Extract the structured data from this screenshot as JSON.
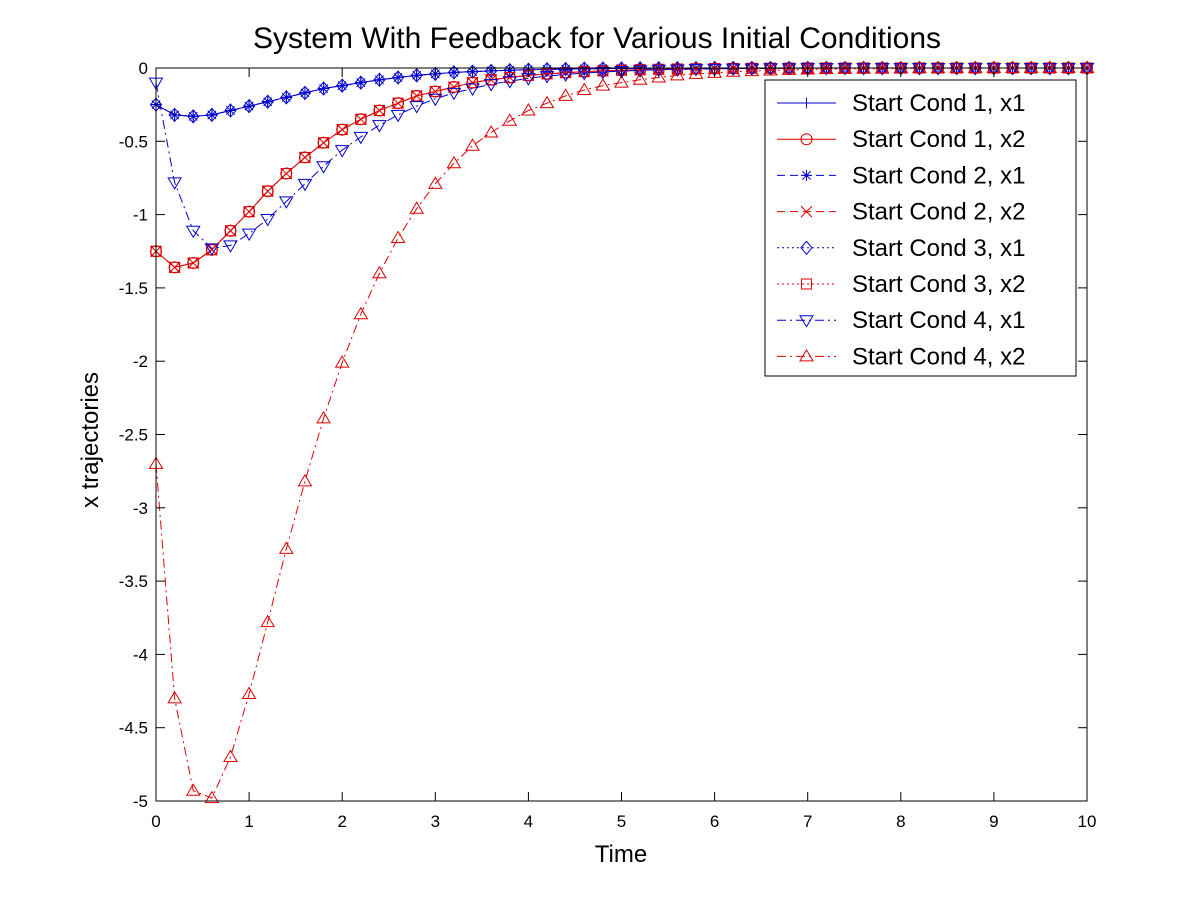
{
  "chart_data": {
    "type": "line",
    "title": "System With Feedback for Various Initial Conditions",
    "xlabel": "Time",
    "ylabel": "x trajectories",
    "xlim": [
      0,
      10
    ],
    "ylim": [
      -5,
      0
    ],
    "x_ticks": [
      "0",
      "1",
      "2",
      "3",
      "4",
      "5",
      "6",
      "7",
      "8",
      "9",
      "10"
    ],
    "y_ticks": [
      "0",
      "-0.5",
      "-1",
      "-1.5",
      "-2",
      "-2.5",
      "-3",
      "-3.5",
      "-4",
      "-4.5",
      "-5"
    ],
    "grid": false,
    "legend_position": "top-right",
    "x": [
      0,
      0.2,
      0.4,
      0.6,
      0.8,
      1,
      1.2,
      1.4,
      1.6,
      1.8,
      2,
      2.2,
      2.4,
      2.6,
      2.8,
      3,
      3.2,
      3.4,
      3.6,
      3.8,
      4,
      4.2,
      4.4,
      4.6,
      4.8,
      5,
      5.2,
      5.4,
      5.6,
      5.8,
      6,
      6.2,
      6.4,
      6.6,
      6.8,
      7,
      7.2,
      7.4,
      7.6,
      7.8,
      8,
      8.2,
      8.4,
      8.6,
      8.8,
      9,
      9.2,
      9.4,
      9.6,
      9.8,
      10
    ],
    "series": [
      {
        "name": "Start Cond 1, x1",
        "color": "#0000cc",
        "marker": "plus",
        "dash": "solid",
        "values": [
          -0.25,
          -0.32,
          -0.33,
          -0.32,
          -0.29,
          -0.26,
          -0.23,
          -0.2,
          -0.17,
          -0.14,
          -0.12,
          -0.1,
          -0.08,
          -0.065,
          -0.05,
          -0.04,
          -0.03,
          -0.025,
          -0.02,
          -0.015,
          -0.012,
          -0.009,
          -0.007,
          -0.005,
          -0.004,
          -0.003,
          -0.002,
          -0.0015,
          -0.001,
          -0.001,
          0,
          0,
          0,
          0,
          0,
          0,
          0,
          0,
          0,
          0,
          0,
          0,
          0,
          0,
          0,
          0,
          0,
          0,
          0,
          0,
          0
        ]
      },
      {
        "name": "Start Cond 1, x2",
        "color": "#dd0000",
        "marker": "circle",
        "dash": "solid",
        "values": [
          -1.25,
          -1.36,
          -1.33,
          -1.24,
          -1.11,
          -0.98,
          -0.84,
          -0.72,
          -0.61,
          -0.51,
          -0.42,
          -0.35,
          -0.29,
          -0.24,
          -0.19,
          -0.16,
          -0.13,
          -0.1,
          -0.08,
          -0.065,
          -0.05,
          -0.04,
          -0.032,
          -0.025,
          -0.02,
          -0.015,
          -0.012,
          -0.009,
          -0.007,
          -0.005,
          -0.004,
          -0.003,
          -0.002,
          -0.0015,
          -0.001,
          0,
          0,
          0,
          0,
          0,
          0,
          0,
          0,
          0,
          0,
          0,
          0,
          0,
          0,
          0,
          0
        ]
      },
      {
        "name": "Start Cond 2, x1",
        "color": "#0000cc",
        "marker": "star",
        "dash": "dashed",
        "values": [
          -0.25,
          -0.32,
          -0.33,
          -0.32,
          -0.29,
          -0.26,
          -0.23,
          -0.2,
          -0.17,
          -0.14,
          -0.12,
          -0.1,
          -0.08,
          -0.065,
          -0.05,
          -0.04,
          -0.03,
          -0.025,
          -0.02,
          -0.015,
          -0.012,
          -0.009,
          -0.007,
          -0.005,
          -0.004,
          -0.003,
          -0.002,
          -0.0015,
          -0.001,
          -0.001,
          0,
          0,
          0,
          0,
          0,
          0,
          0,
          0,
          0,
          0,
          0,
          0,
          0,
          0,
          0,
          0,
          0,
          0,
          0,
          0,
          0
        ]
      },
      {
        "name": "Start Cond 2, x2",
        "color": "#dd0000",
        "marker": "x",
        "dash": "dashed",
        "values": [
          -1.25,
          -1.36,
          -1.33,
          -1.24,
          -1.11,
          -0.98,
          -0.84,
          -0.72,
          -0.61,
          -0.51,
          -0.42,
          -0.35,
          -0.29,
          -0.24,
          -0.19,
          -0.16,
          -0.13,
          -0.1,
          -0.08,
          -0.065,
          -0.05,
          -0.04,
          -0.032,
          -0.025,
          -0.02,
          -0.015,
          -0.012,
          -0.009,
          -0.007,
          -0.005,
          -0.004,
          -0.003,
          -0.002,
          -0.0015,
          -0.001,
          0,
          0,
          0,
          0,
          0,
          0,
          0,
          0,
          0,
          0,
          0,
          0,
          0,
          0,
          0,
          0
        ]
      },
      {
        "name": "Start Cond 3, x1",
        "color": "#0000cc",
        "marker": "diamond",
        "dash": "dotted",
        "values": [
          -0.25,
          -0.32,
          -0.33,
          -0.32,
          -0.29,
          -0.26,
          -0.23,
          -0.2,
          -0.17,
          -0.14,
          -0.12,
          -0.1,
          -0.08,
          -0.065,
          -0.05,
          -0.04,
          -0.03,
          -0.025,
          -0.02,
          -0.015,
          -0.012,
          -0.009,
          -0.007,
          -0.005,
          -0.004,
          -0.003,
          -0.002,
          -0.0015,
          -0.001,
          -0.001,
          0,
          0,
          0,
          0,
          0,
          0,
          0,
          0,
          0,
          0,
          0,
          0,
          0,
          0,
          0,
          0,
          0,
          0,
          0,
          0,
          0
        ]
      },
      {
        "name": "Start Cond 3, x2",
        "color": "#dd0000",
        "marker": "square",
        "dash": "dotted",
        "values": [
          -1.25,
          -1.36,
          -1.33,
          -1.24,
          -1.11,
          -0.98,
          -0.84,
          -0.72,
          -0.61,
          -0.51,
          -0.42,
          -0.35,
          -0.29,
          -0.24,
          -0.19,
          -0.16,
          -0.13,
          -0.1,
          -0.08,
          -0.065,
          -0.05,
          -0.04,
          -0.032,
          -0.025,
          -0.02,
          -0.015,
          -0.012,
          -0.009,
          -0.007,
          -0.005,
          -0.004,
          -0.003,
          -0.002,
          -0.0015,
          -0.001,
          0,
          0,
          0,
          0,
          0,
          0,
          0,
          0,
          0,
          0,
          0,
          0,
          0,
          0,
          0,
          0
        ]
      },
      {
        "name": "Start Cond 4, x1",
        "color": "#0000cc",
        "marker": "triangle-down",
        "dash": "dashdot",
        "values": [
          -0.1,
          -0.78,
          -1.11,
          -1.23,
          -1.21,
          -1.13,
          -1.03,
          -0.91,
          -0.79,
          -0.67,
          -0.56,
          -0.47,
          -0.39,
          -0.32,
          -0.26,
          -0.21,
          -0.17,
          -0.14,
          -0.11,
          -0.09,
          -0.07,
          -0.055,
          -0.044,
          -0.034,
          -0.027,
          -0.021,
          -0.016,
          -0.012,
          -0.01,
          -0.007,
          -0.006,
          -0.004,
          -0.003,
          -0.002,
          -0.002,
          -0.001,
          0,
          0,
          0,
          0,
          0,
          0,
          0,
          0,
          0,
          0,
          0,
          0,
          0,
          0,
          0
        ]
      },
      {
        "name": "Start Cond 4, x2",
        "color": "#dd0000",
        "marker": "triangle-up",
        "dash": "dashdot",
        "values": [
          -2.7,
          -4.3,
          -4.93,
          -4.98,
          -4.7,
          -4.27,
          -3.78,
          -3.28,
          -2.82,
          -2.39,
          -2.01,
          -1.68,
          -1.4,
          -1.16,
          -0.96,
          -0.79,
          -0.65,
          -0.53,
          -0.44,
          -0.36,
          -0.29,
          -0.24,
          -0.19,
          -0.15,
          -0.12,
          -0.1,
          -0.08,
          -0.065,
          -0.05,
          -0.04,
          -0.033,
          -0.026,
          -0.021,
          -0.017,
          -0.013,
          -0.01,
          -0.008,
          -0.006,
          -0.005,
          -0.004,
          -0.003,
          -0.002,
          -0.002,
          -0.001,
          -0.001,
          0,
          0,
          0,
          0,
          0,
          0
        ]
      }
    ]
  }
}
